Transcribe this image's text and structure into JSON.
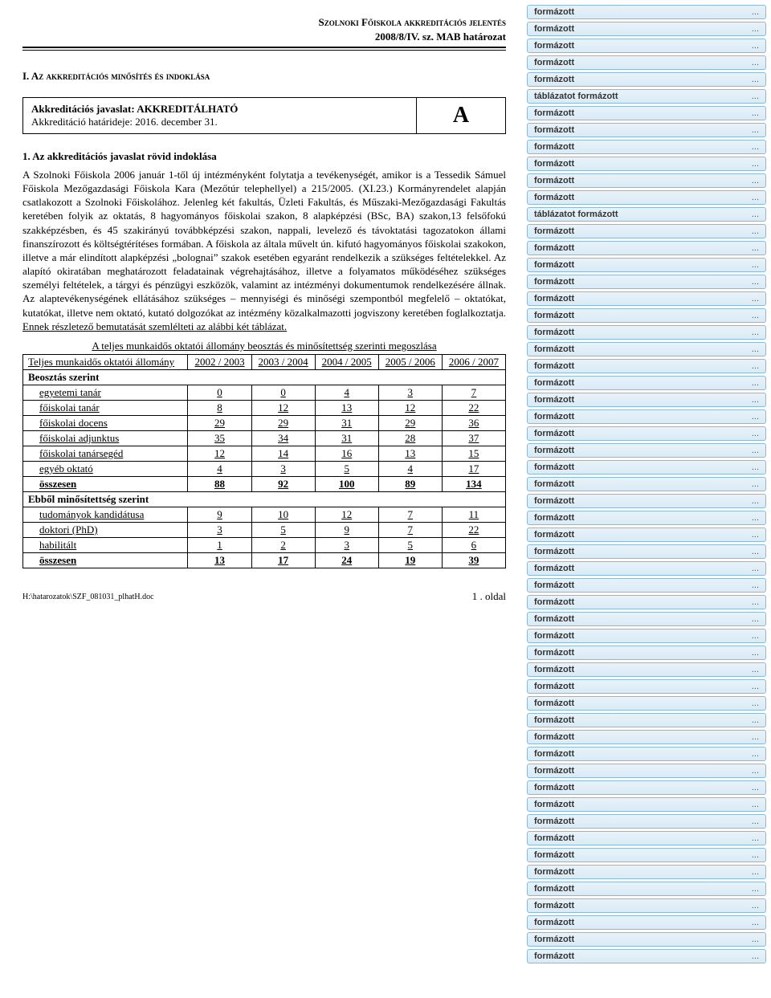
{
  "header": {
    "line1": "Szolnoki Főiskola akkreditációs jelentés",
    "line2": "2008/8/IV. sz. MAB határozat"
  },
  "section_title": "I.   Az akkreditációs minősítés és indoklása",
  "accred_box": {
    "line1_bold": "Akkreditációs javaslat: AKKREDITÁLHATÓ",
    "line2": "Akkreditáció határideje: 2016. december 31.",
    "grade": "A"
  },
  "subtitle": "1. Az akkreditációs javaslat rövid indoklása",
  "body_paragraph": "A Szolnoki Főiskola 2006 január 1-től új intézményként folytatja a tevékenységét, amikor is a Tessedik Sámuel Főiskola Mezőgazdasági Főiskola Kara (Mezőtúr telephellyel) a 215/2005. (XI.23.) Kormányrendelet alapján csatlakozott a Szolnoki Főiskolához. Jelenleg két fakultás, Üzleti Fakultás, és Műszaki-Mezőgazdasági Fakultás keretében folyik az oktatás, 8 hagyományos főiskolai szakon, 8 alapképzési (BSc, BA) szakon,13 felsőfokú szakképzésben, és 45 szakirányú továbbképzési szakon, nappali, levelező és távoktatási tagozatokon állami finanszírozott és költségtérítéses formában. A főiskola az általa művelt ún. kifutó hagyományos főiskolai szakokon, illetve a már elindított alapképzési „bolognai” szakok esetében egyaránt rendelkezik a szükséges feltételekkel. Az alapító okiratában meghatározott feladatainak végrehajtásához, illetve a folyamatos működéséhez szükséges személyi feltételek, a tárgyi és pénzügyi eszközök, valamint az intézményi dokumentumok rendelkezésére állnak. Az alaptevékenységének ellátásához szükséges – mennyiségi és minőségi szempontból megfelelő – oktatókat, kutatókat, illetve nem oktató, kutató dolgozókat az intézmény közalkalmazotti jogviszony keretében foglalkoztatja.",
  "body_link": " Ennek részletező bemutatását szemlélteti az alábbi két táblázat.",
  "table_title": "A teljes munkaidős oktatói állomány beosztás és minősítettség szerinti megoszlása",
  "table": {
    "header_label": "Teljes munkaidős oktatói állomány",
    "columns": [
      "2002 / 2003",
      "2003 / 2004",
      "2004 / 2005",
      "2005 / 2006",
      "2006 / 2007"
    ],
    "section1": "Beosztás szerint",
    "rows1": [
      {
        "label": "egyetemi tanár",
        "vals": [
          "0",
          "0",
          "4",
          "3",
          "7"
        ]
      },
      {
        "label": "főiskolai tanár",
        "vals": [
          "8",
          "12",
          "13",
          "12",
          "22"
        ]
      },
      {
        "label": "főiskolai docens",
        "vals": [
          "29",
          "29",
          "31",
          "29",
          "36"
        ]
      },
      {
        "label": "főiskolai adjunktus",
        "vals": [
          "35",
          "34",
          "31",
          "28",
          "37"
        ]
      },
      {
        "label": "főiskolai tanársegéd",
        "vals": [
          "12",
          "14",
          "16",
          "13",
          "15"
        ]
      },
      {
        "label": "egyéb oktató",
        "vals": [
          "4",
          "3",
          "5",
          "4",
          "17"
        ]
      }
    ],
    "total1": {
      "label": "összesen",
      "vals": [
        "88",
        "92",
        "100",
        "89",
        "134"
      ]
    },
    "section2": "Ebből minősítettség szerint",
    "rows2": [
      {
        "label": "tudományok kandidátusa",
        "vals": [
          "9",
          "10",
          "12",
          "7",
          "11"
        ]
      },
      {
        "label": "doktori (PhD)",
        "vals": [
          "3",
          "5",
          "9",
          "7",
          "22"
        ]
      },
      {
        "label": "habilitált",
        "vals": [
          "1",
          "2",
          "3",
          "5",
          "6"
        ]
      }
    ],
    "total2": {
      "label": "összesen",
      "vals": [
        "13",
        "17",
        "24",
        "19",
        "39"
      ]
    }
  },
  "footer_path": "H:\\hatarozatok\\SZF_081031_plhatH.doc",
  "page_number": "1 . oldal",
  "annotations": {
    "items": [
      "formázott",
      "formázott",
      "formázott",
      "formázott",
      "formázott",
      "táblázatot formázott",
      "formázott",
      "formázott",
      "formázott",
      "formázott",
      "formázott",
      "formázott",
      "táblázatot formázott",
      "formázott",
      "formázott",
      "formázott",
      "formázott",
      "formázott",
      "formázott",
      "formázott",
      "formázott",
      "formázott",
      "formázott",
      "formázott",
      "formázott",
      "formázott",
      "formázott",
      "formázott",
      "formázott",
      "formázott",
      "formázott",
      "formázott",
      "formázott",
      "formázott",
      "formázott",
      "formázott",
      "formázott",
      "formázott",
      "formázott",
      "formázott",
      "formázott",
      "formázott",
      "formázott",
      "formázott",
      "formázott",
      "formázott",
      "formázott",
      "formázott",
      "formázott",
      "formázott",
      "formázott",
      "formázott",
      "formázott",
      "formázott",
      "formázott",
      "formázott",
      "formázott"
    ],
    "dots": "..."
  },
  "colors": {
    "anno_bg_top": "#e8f2f9",
    "anno_bg_bottom": "#d9ebf6",
    "anno_border": "#8bb8d6",
    "text": "#000000",
    "bg": "#ffffff"
  }
}
